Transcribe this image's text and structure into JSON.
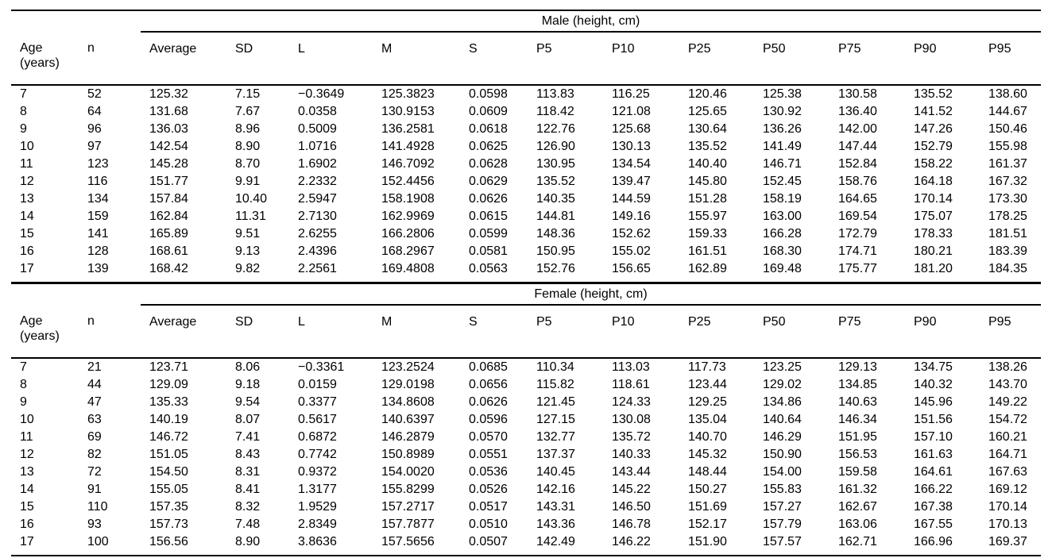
{
  "page": {
    "background_color": "#ffffff",
    "text_color": "#000000",
    "rule_color": "#000000"
  },
  "table": {
    "age_header_lines": [
      "Age",
      "(years)"
    ],
    "columns": [
      "n",
      "Average",
      "SD",
      "L",
      "M",
      "S",
      "P5",
      "P10",
      "P25",
      "P50",
      "P75",
      "P90",
      "P95"
    ],
    "sections": [
      {
        "title": "Male (height, cm)",
        "rows": [
          [
            "7",
            "52",
            "125.32",
            "7.15",
            "−0.3649",
            "125.3823",
            "0.0598",
            "113.83",
            "116.25",
            "120.46",
            "125.38",
            "130.58",
            "135.52",
            "138.60"
          ],
          [
            "8",
            "64",
            "131.68",
            "7.67",
            "0.0358",
            "130.9153",
            "0.0609",
            "118.42",
            "121.08",
            "125.65",
            "130.92",
            "136.40",
            "141.52",
            "144.67"
          ],
          [
            "9",
            "96",
            "136.03",
            "8.96",
            "0.5009",
            "136.2581",
            "0.0618",
            "122.76",
            "125.68",
            "130.64",
            "136.26",
            "142.00",
            "147.26",
            "150.46"
          ],
          [
            "10",
            "97",
            "142.54",
            "8.90",
            "1.0716",
            "141.4928",
            "0.0625",
            "126.90",
            "130.13",
            "135.52",
            "141.49",
            "147.44",
            "152.79",
            "155.98"
          ],
          [
            "11",
            "123",
            "145.28",
            "8.70",
            "1.6902",
            "146.7092",
            "0.0628",
            "130.95",
            "134.54",
            "140.40",
            "146.71",
            "152.84",
            "158.22",
            "161.37"
          ],
          [
            "12",
            "116",
            "151.77",
            "9.91",
            "2.2332",
            "152.4456",
            "0.0629",
            "135.52",
            "139.47",
            "145.80",
            "152.45",
            "158.76",
            "164.18",
            "167.32"
          ],
          [
            "13",
            "134",
            "157.84",
            "10.40",
            "2.5947",
            "158.1908",
            "0.0626",
            "140.35",
            "144.59",
            "151.28",
            "158.19",
            "164.65",
            "170.14",
            "173.30"
          ],
          [
            "14",
            "159",
            "162.84",
            "11.31",
            "2.7130",
            "162.9969",
            "0.0615",
            "144.81",
            "149.16",
            "155.97",
            "163.00",
            "169.54",
            "175.07",
            "178.25"
          ],
          [
            "15",
            "141",
            "165.89",
            "9.51",
            "2.6255",
            "166.2806",
            "0.0599",
            "148.36",
            "152.62",
            "159.33",
            "166.28",
            "172.79",
            "178.33",
            "181.51"
          ],
          [
            "16",
            "128",
            "168.61",
            "9.13",
            "2.4396",
            "168.2967",
            "0.0581",
            "150.95",
            "155.02",
            "161.51",
            "168.30",
            "174.71",
            "180.21",
            "183.39"
          ],
          [
            "17",
            "139",
            "168.42",
            "9.82",
            "2.2561",
            "169.4808",
            "0.0563",
            "152.76",
            "156.65",
            "162.89",
            "169.48",
            "175.77",
            "181.20",
            "184.35"
          ]
        ]
      },
      {
        "title": "Female (height, cm)",
        "rows": [
          [
            "7",
            "21",
            "123.71",
            "8.06",
            "−0.3361",
            "123.2524",
            "0.0685",
            "110.34",
            "113.03",
            "117.73",
            "123.25",
            "129.13",
            "134.75",
            "138.26"
          ],
          [
            "8",
            "44",
            "129.09",
            "9.18",
            "0.0159",
            "129.0198",
            "0.0656",
            "115.82",
            "118.61",
            "123.44",
            "129.02",
            "134.85",
            "140.32",
            "143.70"
          ],
          [
            "9",
            "47",
            "135.33",
            "9.54",
            "0.3377",
            "134.8608",
            "0.0626",
            "121.45",
            "124.33",
            "129.25",
            "134.86",
            "140.63",
            "145.96",
            "149.22"
          ],
          [
            "10",
            "63",
            "140.19",
            "8.07",
            "0.5617",
            "140.6397",
            "0.0596",
            "127.15",
            "130.08",
            "135.04",
            "140.64",
            "146.34",
            "151.56",
            "154.72"
          ],
          [
            "11",
            "69",
            "146.72",
            "7.41",
            "0.6872",
            "146.2879",
            "0.0570",
            "132.77",
            "135.72",
            "140.70",
            "146.29",
            "151.95",
            "157.10",
            "160.21"
          ],
          [
            "12",
            "82",
            "151.05",
            "8.43",
            "0.7742",
            "150.8989",
            "0.0551",
            "137.37",
            "140.33",
            "145.32",
            "150.90",
            "156.53",
            "161.63",
            "164.71"
          ],
          [
            "13",
            "72",
            "154.50",
            "8.31",
            "0.9372",
            "154.0020",
            "0.0536",
            "140.45",
            "143.44",
            "148.44",
            "154.00",
            "159.58",
            "164.61",
            "167.63"
          ],
          [
            "14",
            "91",
            "155.05",
            "8.41",
            "1.3177",
            "155.8299",
            "0.0526",
            "142.16",
            "145.22",
            "150.27",
            "155.83",
            "161.32",
            "166.22",
            "169.12"
          ],
          [
            "15",
            "110",
            "157.35",
            "8.32",
            "1.9529",
            "157.2717",
            "0.0517",
            "143.31",
            "146.50",
            "151.69",
            "157.27",
            "162.67",
            "167.38",
            "170.14"
          ],
          [
            "16",
            "93",
            "157.73",
            "7.48",
            "2.8349",
            "157.7877",
            "0.0510",
            "143.36",
            "146.78",
            "152.17",
            "157.79",
            "163.06",
            "167.55",
            "170.13"
          ],
          [
            "17",
            "100",
            "156.56",
            "8.90",
            "3.8636",
            "157.5656",
            "0.0507",
            "142.49",
            "146.22",
            "151.90",
            "157.57",
            "162.71",
            "166.96",
            "169.37"
          ]
        ]
      }
    ]
  }
}
